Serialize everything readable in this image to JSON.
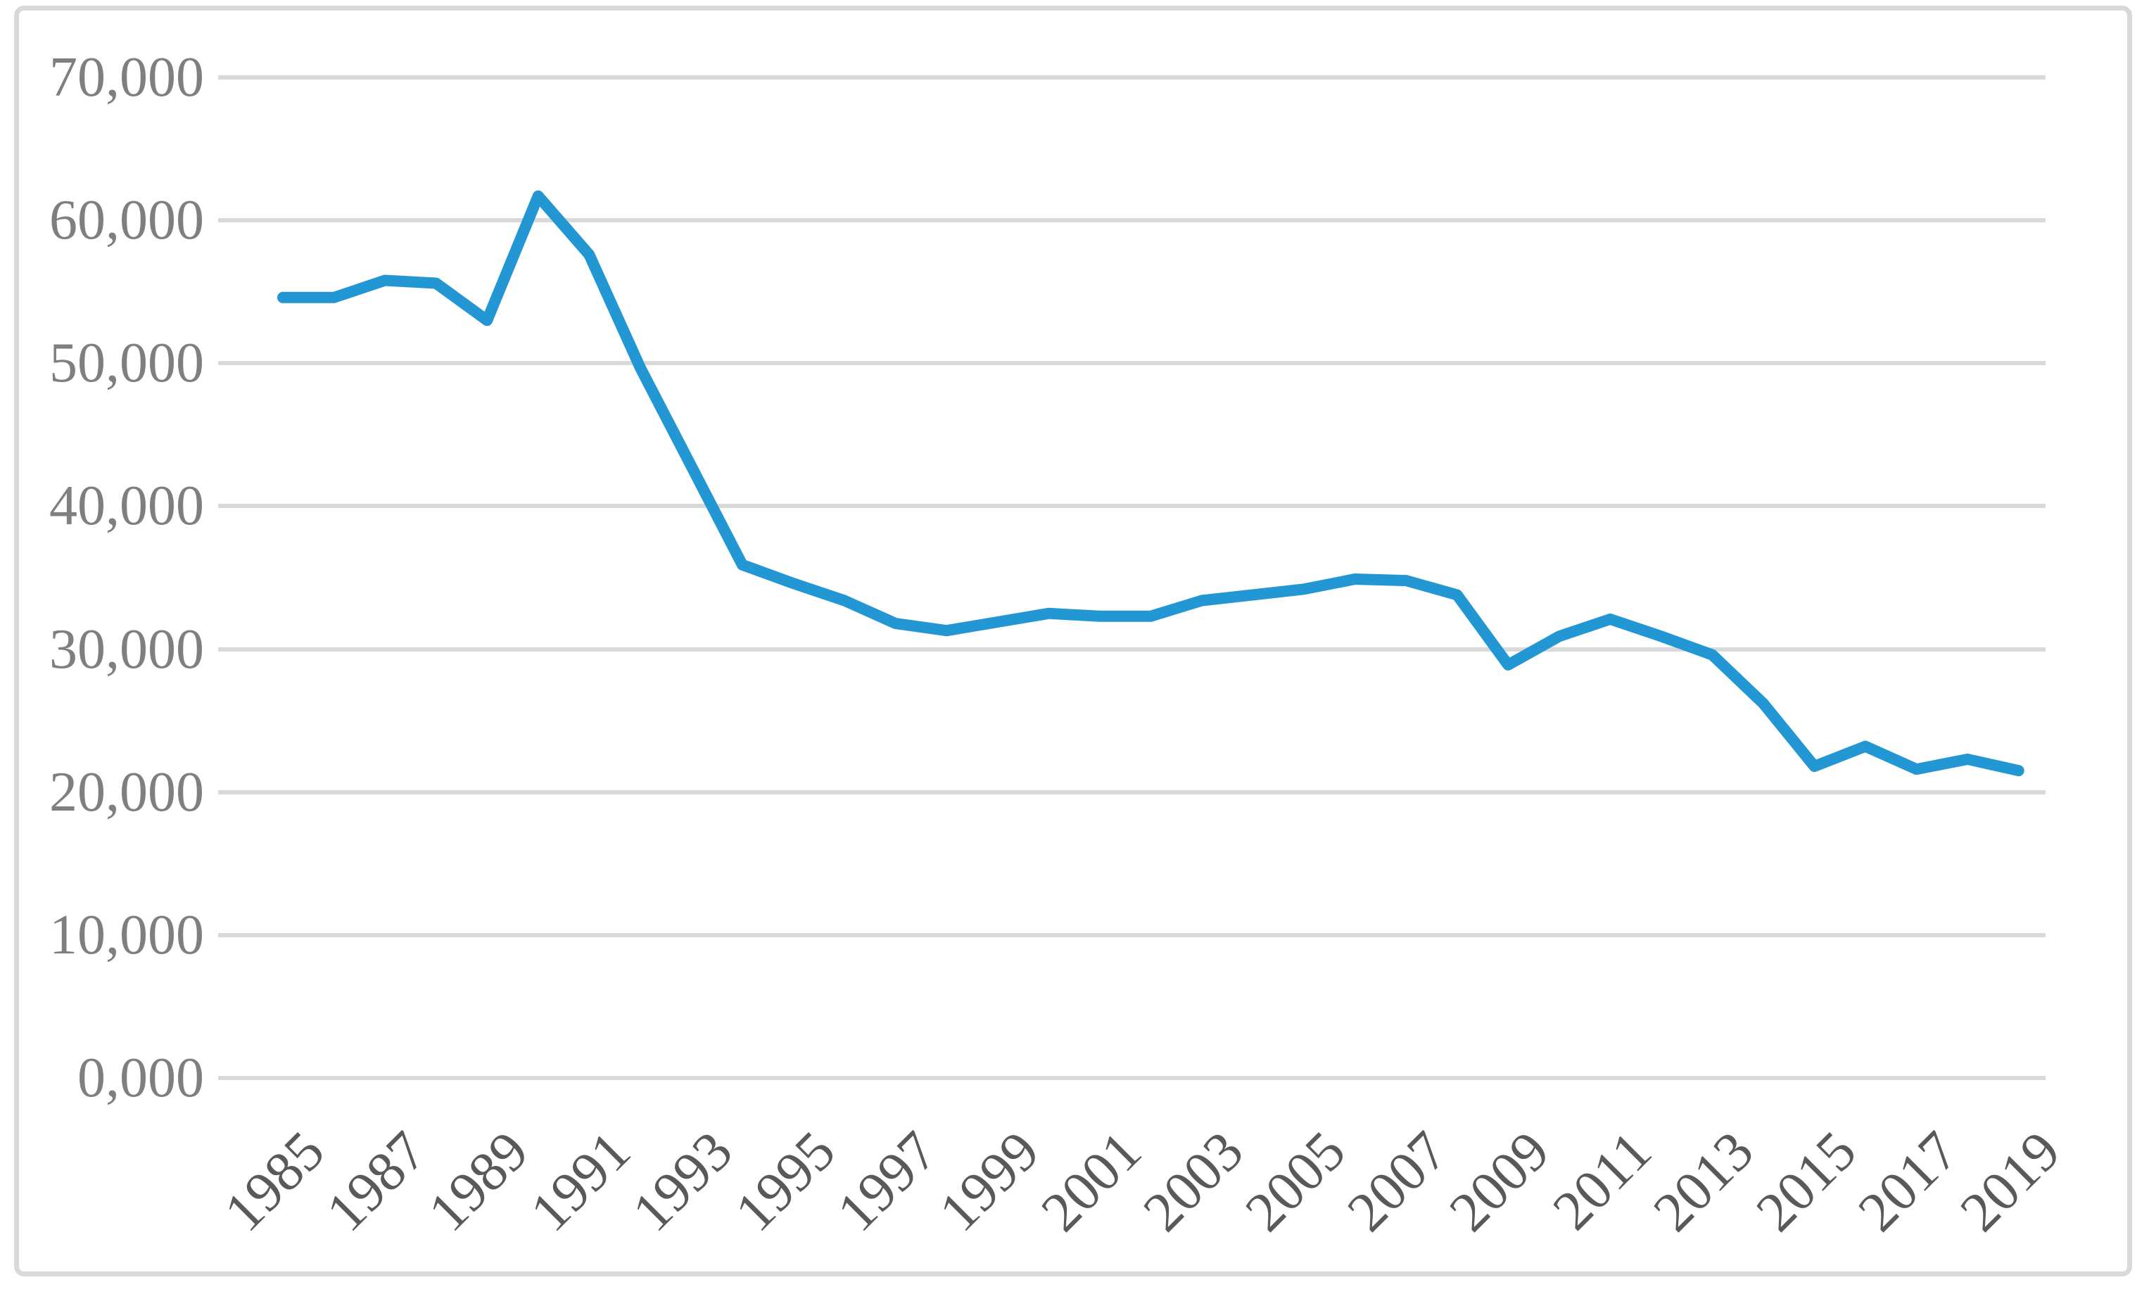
{
  "chart_data": {
    "type": "line",
    "title": "",
    "xlabel": "",
    "ylabel": "",
    "x": [
      1985,
      1986,
      1987,
      1988,
      1989,
      1990,
      1991,
      1992,
      1993,
      1994,
      1995,
      1996,
      1997,
      1998,
      1999,
      2000,
      2001,
      2002,
      2003,
      2004,
      2005,
      2006,
      2007,
      2008,
      2009,
      2010,
      2011,
      2012,
      2013,
      2014,
      2015,
      2016,
      2017,
      2018,
      2019
    ],
    "values": [
      54600,
      54600,
      55800,
      55600,
      53000,
      61700,
      57600,
      49700,
      42800,
      35900,
      34600,
      33400,
      31800,
      31300,
      31900,
      32500,
      32300,
      32300,
      33400,
      33800,
      34200,
      34900,
      34800,
      33800,
      28900,
      30900,
      32100,
      30900,
      29600,
      26200,
      21800,
      23200,
      21600,
      22300,
      21500
    ],
    "ylim": [
      0,
      70000
    ],
    "y_tick_interval": 10000,
    "y_tick_labels": [
      "70,000",
      "60,000",
      "50,000",
      "40,000",
      "30,000",
      "20,000",
      "10,000",
      "0,000"
    ],
    "x_tick_labels": [
      "1985",
      "1987",
      "1989",
      "1991",
      "1993",
      "1995",
      "1997",
      "1999",
      "2001",
      "2003",
      "2005",
      "2007",
      "2009",
      "2011",
      "2013",
      "2015",
      "2017",
      "2019"
    ],
    "grid": true,
    "legend": "none",
    "colors": {
      "line": "#2396D4",
      "gridline": "#D9D9D9",
      "border": "#D9D9D9",
      "y_label_text": "#7F7F7F",
      "x_label_text": "#595959"
    }
  }
}
